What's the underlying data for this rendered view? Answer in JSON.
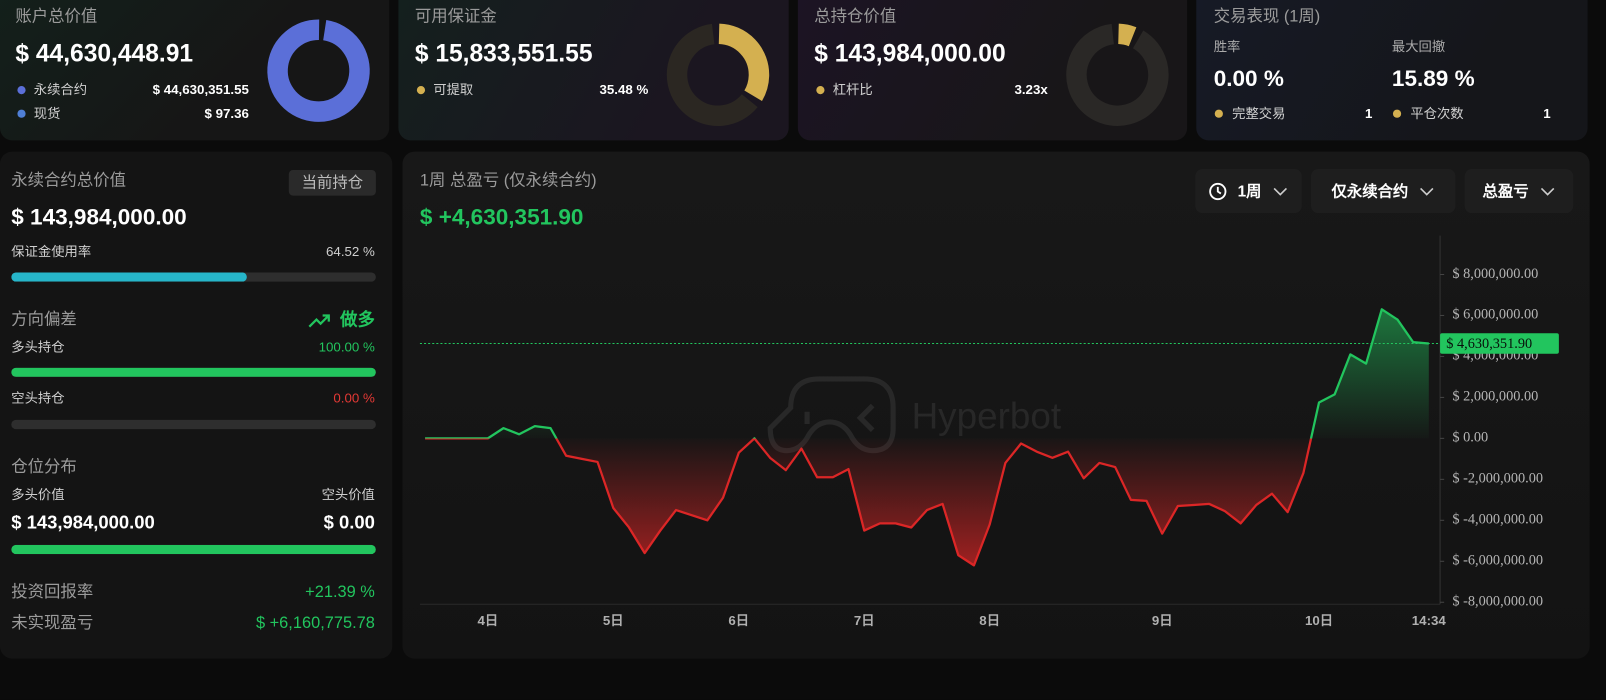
{
  "summary_cards": [
    {
      "title": "账户总价值",
      "value": "$ 44,630,448.91",
      "rows": [
        {
          "label": "永续合约",
          "value": "$ 44,630,351.55"
        },
        {
          "label": "现货",
          "value": "$ 97.36"
        }
      ]
    },
    {
      "title": "可用保证金",
      "value": "$ 15,833,551.55",
      "rows": [
        {
          "label": "可提取",
          "value": "35.48 %"
        }
      ]
    },
    {
      "title": "总持仓价值",
      "value": "$ 143,984,000.00",
      "rows": [
        {
          "label": "杠杆比",
          "value": "3.23x"
        }
      ]
    },
    {
      "title": "交易表现 (1周)",
      "stats": [
        {
          "label": "胜率",
          "value": "0.00 %"
        },
        {
          "label": "最大回撤",
          "value": "15.89 %"
        }
      ],
      "rows": [
        {
          "label": "完整交易",
          "value": "1"
        },
        {
          "label": "平仓次数",
          "value": "1"
        }
      ]
    }
  ],
  "perp_panel": {
    "title": "永续合约总价值",
    "badge": "当前持仓",
    "value": "$ 143,984,000.00",
    "margin_usage": {
      "label": "保证金使用率",
      "value": "64.52 %"
    },
    "direction": {
      "title": "方向偏差",
      "bias": "做多",
      "long": {
        "label": "多头持仓",
        "value": "100.00 %"
      },
      "short": {
        "label": "空头持仓",
        "value": "0.00 %"
      }
    },
    "distribution": {
      "title": "仓位分布",
      "long": {
        "label": "多头价值",
        "value": "$ 143,984,000.00"
      },
      "short": {
        "label": "空头价值",
        "value": "$ 0.00"
      }
    },
    "roi": {
      "label": "投资回报率",
      "value": "+21.39 %"
    },
    "unrealized": {
      "label": "未实现盈亏",
      "value": "$ +6,160,775.78"
    }
  },
  "controls": [
    "1周",
    "仅永续合约",
    "总盈亏"
  ],
  "chart_data": {
    "type": "line",
    "title": "1周 总盈亏 (仅永续合约)",
    "subtitle": "$ +4,630,351.90",
    "watermark": "Hyperbot",
    "categories": [
      null,
      null,
      null,
      null,
      "4日",
      null,
      null,
      null,
      null,
      null,
      null,
      null,
      "5日",
      null,
      null,
      null,
      null,
      null,
      null,
      null,
      "6日",
      null,
      null,
      null,
      null,
      null,
      null,
      null,
      "7日",
      null,
      null,
      null,
      null,
      null,
      null,
      null,
      "8日",
      null,
      null,
      null,
      null,
      null,
      null,
      null,
      null,
      null,
      null,
      "9日",
      null,
      null,
      null,
      null,
      null,
      null,
      null,
      null,
      null,
      "10日",
      null,
      null,
      null,
      null,
      null,
      null,
      "14:34"
    ],
    "values": [
      0,
      0,
      0,
      0,
      0,
      500000,
      200000,
      600000,
      500000,
      -850000,
      -1000000,
      -1150000,
      -3400000,
      -4350000,
      -5600000,
      -4500000,
      -3500000,
      -3750000,
      -4000000,
      -2900000,
      -700000,
      0,
      -950000,
      -1550000,
      -500000,
      -1900000,
      -1900000,
      -1500000,
      -4500000,
      -4150000,
      -4150000,
      -4350000,
      -3500000,
      -3200000,
      -5700000,
      -6200000,
      -4200000,
      -1200000,
      -250000,
      -650000,
      -950000,
      -650000,
      -1950000,
      -1200000,
      -1400000,
      -3000000,
      -3050000,
      -4650000,
      -3300000,
      -3250000,
      -3200000,
      -3550000,
      -4150000,
      -3250000,
      -2700000,
      -3600000,
      -1700000,
      1750000,
      2150000,
      4100000,
      3650000,
      6300000,
      5800000,
      4700000,
      4630351.9
    ],
    "last_value_label": "$ 4,630,351.90",
    "ylim": [
      -8100000,
      9900000
    ],
    "yticks": [
      {
        "value": -8000000,
        "label": "$ -8,000,000.00"
      },
      {
        "value": -6000000,
        "label": "$ -6,000,000.00"
      },
      {
        "value": -4000000,
        "label": "$ -4,000,000.00"
      },
      {
        "value": -2000000,
        "label": "$ -2,000,000.00"
      },
      {
        "value": 0,
        "label": "$ 0.00"
      },
      {
        "value": 2000000,
        "label": "$ 2,000,000.00"
      },
      {
        "value": 4000000,
        "label": "$ 4,000,000.00"
      },
      {
        "value": 6000000,
        "label": "$ 6,000,000.00"
      },
      {
        "value": 8000000,
        "label": "$ 8,000,000.00"
      }
    ],
    "colors": {
      "up": "#22c55e",
      "down": "#dc2626"
    }
  }
}
